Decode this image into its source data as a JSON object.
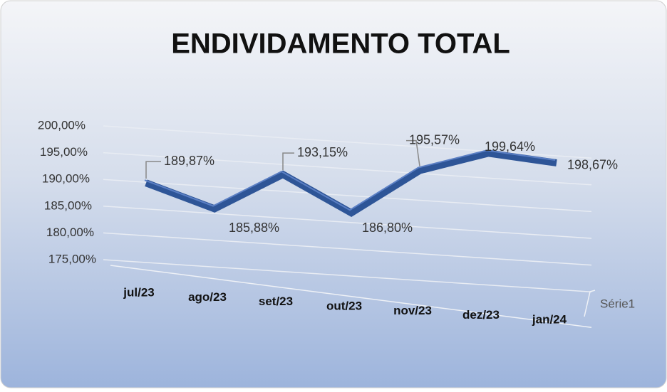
{
  "chart_data": {
    "type": "line",
    "title": "ENDIVIDAMENTO TOTAL",
    "categories": [
      "jul/23",
      "ago/23",
      "set/23",
      "out/23",
      "nov/23",
      "dez/23",
      "jan/24"
    ],
    "series": [
      {
        "name": "Série1",
        "color": "#2e5597",
        "values": [
          189.87,
          185.88,
          193.15,
          186.8,
          195.57,
          199.64,
          198.67
        ],
        "value_labels": [
          "189,87%",
          "185,88%",
          "193,15%",
          "186,80%",
          "195,57%",
          "199,64%",
          "198,67%"
        ]
      }
    ],
    "ylim": [
      175,
      200
    ],
    "yticks": [
      {
        "value": 175,
        "label": "175,00%"
      },
      {
        "value": 180,
        "label": "180,00%"
      },
      {
        "value": 185,
        "label": "185,00%"
      },
      {
        "value": 190,
        "label": "190,00%"
      },
      {
        "value": 195,
        "label": "195,00%"
      },
      {
        "value": 200,
        "label": "200,00%"
      }
    ],
    "grid": true
  }
}
